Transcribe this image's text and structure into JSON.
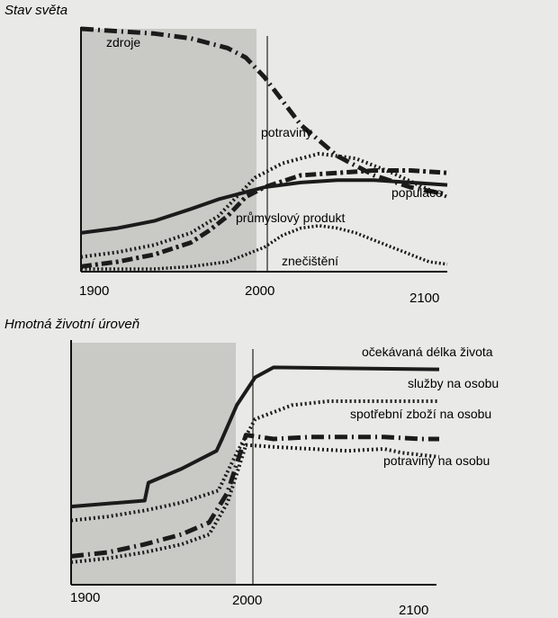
{
  "chart_data": [
    {
      "type": "line",
      "title": "Stav světa",
      "x_tick_labels": [
        "1900",
        "2000",
        "2100"
      ],
      "xlim": [
        1900,
        2100
      ],
      "shaded_region": [
        1900,
        1990
      ],
      "vertical_marker": 2000,
      "series": [
        {
          "name": "zdroje",
          "style": "dash-dot",
          "x": [
            1900,
            1920,
            1940,
            1960,
            1980,
            1990,
            2000,
            2010,
            2020,
            2040,
            2060,
            2080,
            2100
          ],
          "y": [
            1.0,
            0.99,
            0.98,
            0.96,
            0.92,
            0.88,
            0.8,
            0.7,
            0.6,
            0.47,
            0.39,
            0.34,
            0.31
          ]
        },
        {
          "name": "potraviny",
          "style": "dotted",
          "x": [
            1900,
            1920,
            1940,
            1960,
            1975,
            1985,
            1995,
            2010,
            2030,
            2050,
            2070,
            2090,
            2100
          ],
          "y": [
            0.05,
            0.07,
            0.1,
            0.15,
            0.22,
            0.3,
            0.38,
            0.44,
            0.48,
            0.46,
            0.4,
            0.33,
            0.3
          ]
        },
        {
          "name": "průmyslový produkt",
          "style": "dash-dot-heavy",
          "x": [
            1900,
            1920,
            1940,
            1960,
            1970,
            1980,
            1990,
            2000,
            2020,
            2040,
            2060,
            2080,
            2100
          ],
          "y": [
            0.01,
            0.03,
            0.06,
            0.11,
            0.16,
            0.22,
            0.3,
            0.34,
            0.39,
            0.4,
            0.41,
            0.41,
            0.4
          ]
        },
        {
          "name": "populace",
          "style": "solid",
          "x": [
            1900,
            1920,
            1940,
            1960,
            1975,
            1990,
            2000,
            2020,
            2040,
            2060,
            2080,
            2100
          ],
          "y": [
            0.15,
            0.17,
            0.2,
            0.25,
            0.29,
            0.32,
            0.34,
            0.36,
            0.37,
            0.37,
            0.36,
            0.35
          ]
        },
        {
          "name": "znečištění",
          "style": "dotted-fine",
          "x": [
            1900,
            1940,
            1960,
            1980,
            2000,
            2010,
            2020,
            2030,
            2040,
            2050,
            2060,
            2070,
            2080,
            2090,
            2100
          ],
          "y": [
            0.0,
            0.0,
            0.01,
            0.03,
            0.09,
            0.14,
            0.17,
            0.18,
            0.17,
            0.15,
            0.12,
            0.09,
            0.06,
            0.03,
            0.02
          ]
        }
      ]
    },
    {
      "type": "line",
      "title": "Hmotná životní úroveň",
      "x_tick_labels": [
        "1900",
        "2000",
        "2100"
      ],
      "xlim": [
        1900,
        2100
      ],
      "shaded_region": [
        1900,
        1990
      ],
      "vertical_marker": 1995,
      "series": [
        {
          "name": "očekávaná délka života",
          "style": "solid",
          "x": [
            1900,
            1940,
            1942,
            1960,
            1979,
            1982,
            1990,
            2000,
            2010,
            2100
          ],
          "y": [
            0.28,
            0.31,
            0.4,
            0.47,
            0.56,
            0.62,
            0.79,
            0.93,
            0.98,
            0.97
          ]
        },
        {
          "name": "služby na osobu",
          "style": "dotted",
          "x": [
            1900,
            1920,
            1940,
            1960,
            1980,
            1990,
            2000,
            2020,
            2040,
            2060,
            2080,
            2100
          ],
          "y": [
            0.21,
            0.23,
            0.26,
            0.3,
            0.36,
            0.55,
            0.72,
            0.79,
            0.81,
            0.81,
            0.81,
            0.81
          ]
        },
        {
          "name": "spotřební zboží na osobu",
          "style": "dash-dot",
          "x": [
            1900,
            1920,
            1940,
            1960,
            1975,
            1985,
            1995,
            2010,
            2030,
            2050,
            2070,
            2090,
            2100
          ],
          "y": [
            0.03,
            0.05,
            0.09,
            0.14,
            0.2,
            0.35,
            0.64,
            0.62,
            0.63,
            0.63,
            0.63,
            0.62,
            0.62
          ]
        },
        {
          "name": "potraviny na osobu",
          "style": "dotted",
          "x": [
            1900,
            1920,
            1940,
            1960,
            1975,
            1985,
            1995,
            2010,
            2030,
            2050,
            2070,
            2080,
            2100
          ],
          "y": [
            0.0,
            0.02,
            0.05,
            0.09,
            0.14,
            0.3,
            0.59,
            0.58,
            0.57,
            0.56,
            0.57,
            0.55,
            0.53
          ]
        }
      ]
    }
  ]
}
